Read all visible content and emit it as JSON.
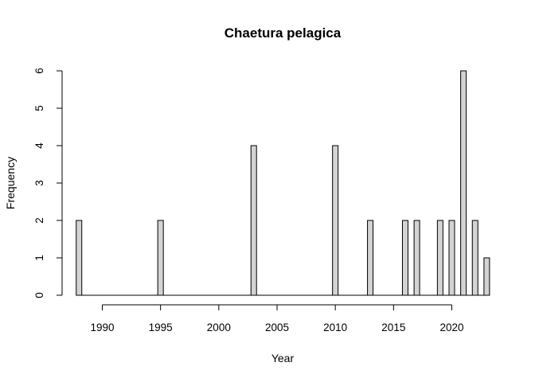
{
  "chart_data": {
    "type": "bar",
    "title": "Chaetura pelagica",
    "xlabel": "Year",
    "ylabel": "Frequency",
    "x": [
      1988,
      1989,
      1990,
      1991,
      1992,
      1993,
      1994,
      1995,
      1996,
      1997,
      1998,
      1999,
      2000,
      2001,
      2002,
      2003,
      2004,
      2005,
      2006,
      2007,
      2008,
      2009,
      2010,
      2011,
      2012,
      2013,
      2014,
      2015,
      2016,
      2017,
      2018,
      2019,
      2020,
      2021,
      2022,
      2023
    ],
    "values": [
      2,
      0,
      0,
      0,
      0,
      0,
      0,
      2,
      0,
      0,
      0,
      0,
      0,
      0,
      0,
      4,
      0,
      0,
      0,
      0,
      0,
      0,
      4,
      0,
      0,
      2,
      0,
      0,
      2,
      2,
      0,
      2,
      2,
      6,
      2,
      1
    ],
    "x_ticks": [
      1990,
      1995,
      2000,
      2005,
      2010,
      2015,
      2020
    ],
    "y_ticks": [
      0,
      1,
      2,
      3,
      4,
      5,
      6
    ],
    "ylim": [
      0,
      6
    ],
    "bar_color": "#d3d3d3",
    "grid": false,
    "legend": "none"
  }
}
